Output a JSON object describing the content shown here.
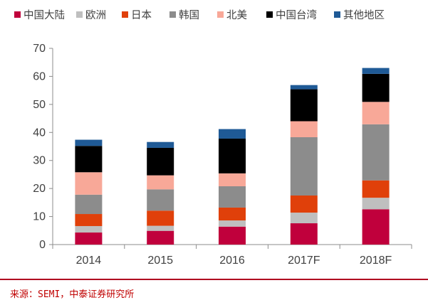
{
  "chart_data": {
    "type": "bar",
    "stacked": true,
    "categories": [
      "2014",
      "2015",
      "2016",
      "2017F",
      "2018F"
    ],
    "series": [
      {
        "name": "中国大陆",
        "color": "#c0003c",
        "values": [
          4.3,
          4.9,
          6.4,
          7.6,
          12.6
        ]
      },
      {
        "name": "欧洲",
        "color": "#bfbfbf",
        "values": [
          2.3,
          1.8,
          2.2,
          3.8,
          4.1
        ]
      },
      {
        "name": "日本",
        "color": "#e0400a",
        "values": [
          4.3,
          5.4,
          4.6,
          6.1,
          6.2
        ]
      },
      {
        "name": "韩国",
        "color": "#8c8c8c",
        "values": [
          6.9,
          7.6,
          7.6,
          20.8,
          20.0
        ]
      },
      {
        "name": "北美",
        "color": "#f8a898",
        "values": [
          8.0,
          5.0,
          4.6,
          5.7,
          8.0
        ]
      },
      {
        "name": "中国台湾",
        "color": "#000000",
        "values": [
          9.4,
          9.8,
          12.4,
          11.4,
          10.0
        ]
      },
      {
        "name": "其他地区",
        "color": "#1f5a96",
        "values": [
          2.2,
          2.1,
          3.4,
          1.5,
          2.1
        ]
      }
    ],
    "yticks": [
      0,
      10,
      20,
      30,
      40,
      50,
      60,
      70
    ],
    "ylim": [
      0,
      70
    ],
    "grid": false,
    "legend": "top"
  },
  "source": "来源：SEMI，中泰证券研究所"
}
